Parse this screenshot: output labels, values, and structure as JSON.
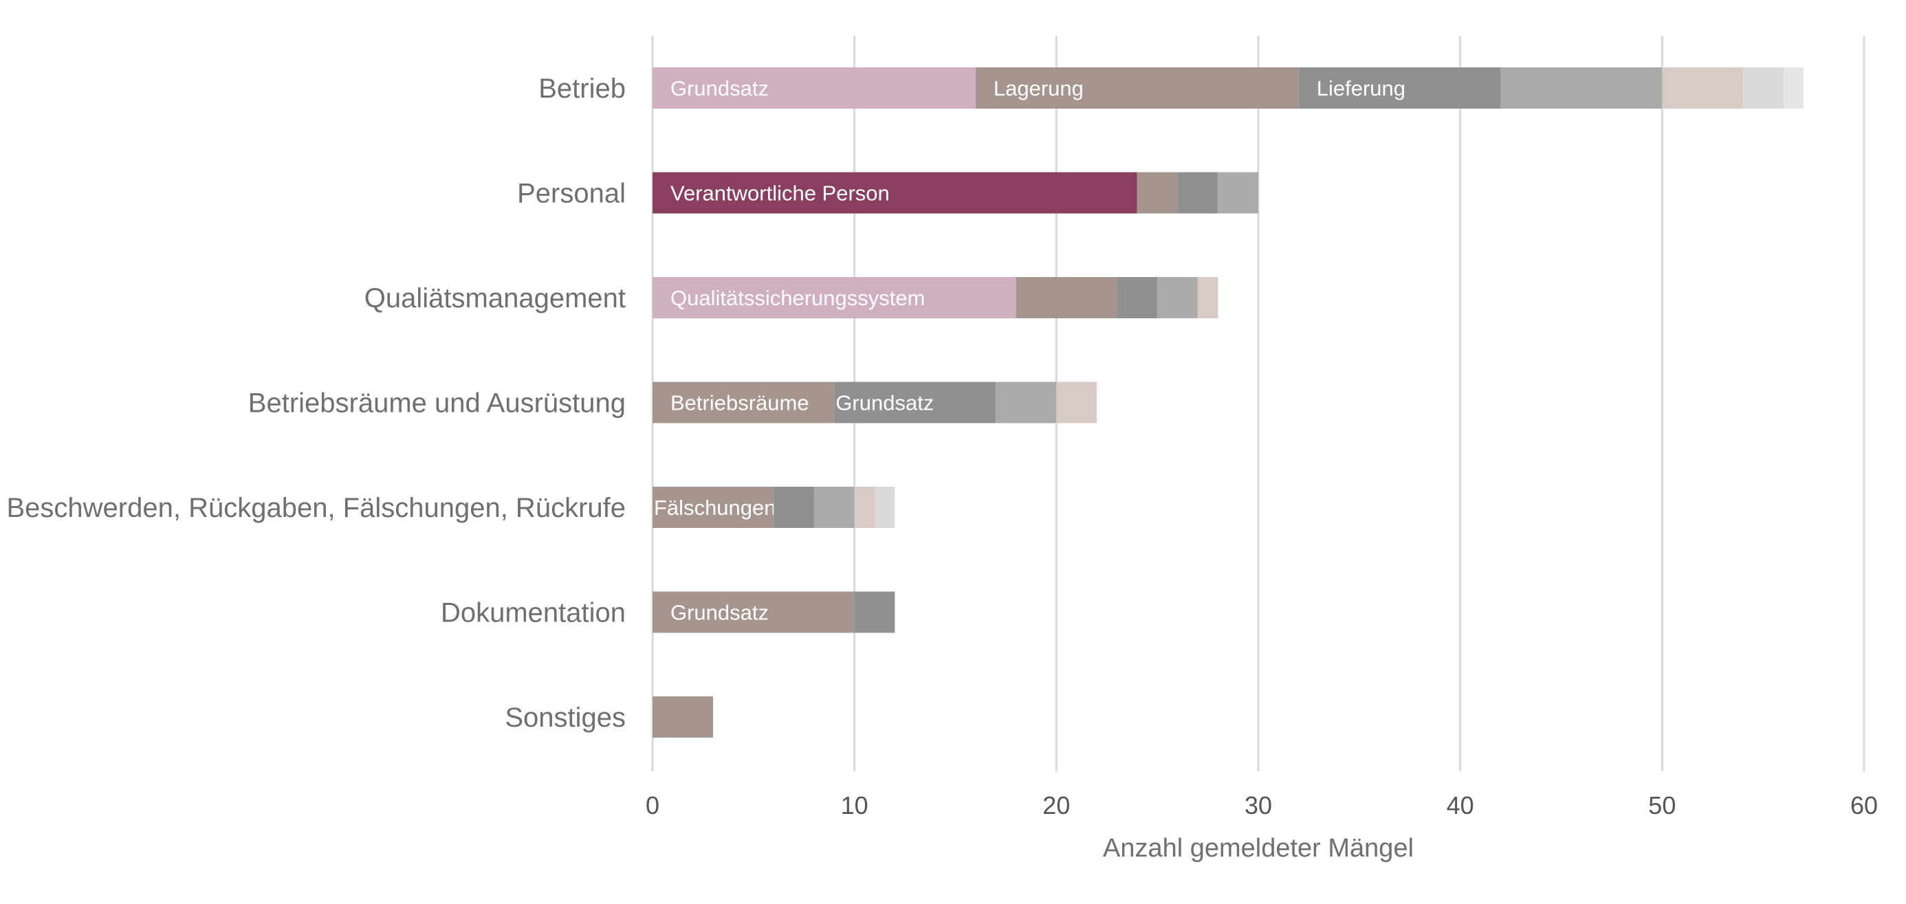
{
  "chart_data": {
    "type": "bar",
    "orientation": "horizontal",
    "stacked": true,
    "xlabel": "Anzahl gemeldeter Mängel",
    "xlim": [
      0,
      60
    ],
    "xticks": [
      0,
      10,
      20,
      30,
      40,
      50,
      60
    ],
    "grid": "vertical",
    "categories": [
      "Betrieb",
      "Personal",
      "Qualiätsmanagement",
      "Betriebsräume und Ausrüstung",
      "Beschwerden, Rückgaben, Fälschungen, Rückrufe",
      "Dokumentation",
      "Sonstiges"
    ],
    "bars": [
      {
        "category": "Betrieb",
        "segments": [
          {
            "value": 16,
            "color": "#d0afc0",
            "label": "Grundsatz"
          },
          {
            "value": 16,
            "color": "#a6958f",
            "label": "Lagerung"
          },
          {
            "value": 10,
            "color": "#8f9190",
            "label": "Lieferung"
          },
          {
            "value": 8,
            "color": "#ababab",
            "label": ""
          },
          {
            "value": 4,
            "color": "#d8cbc6",
            "label": ""
          },
          {
            "value": 2,
            "color": "#dadada",
            "label": ""
          },
          {
            "value": 1,
            "color": "#e6e6e6",
            "label": ""
          }
        ]
      },
      {
        "category": "Personal",
        "segments": [
          {
            "value": 24,
            "color": "#8a3f60",
            "label": "Verantwortliche Person"
          },
          {
            "value": 2,
            "color": "#a6958f",
            "label": ""
          },
          {
            "value": 2,
            "color": "#8f9190",
            "label": ""
          },
          {
            "value": 2,
            "color": "#ababab",
            "label": ""
          }
        ]
      },
      {
        "category": "Qualiätsmanagement",
        "segments": [
          {
            "value": 18,
            "color": "#d0afc0",
            "label": "Qualitätssicherungssystem"
          },
          {
            "value": 5,
            "color": "#a6958f",
            "label": ""
          },
          {
            "value": 2,
            "color": "#8f9190",
            "label": ""
          },
          {
            "value": 2,
            "color": "#ababab",
            "label": ""
          },
          {
            "value": 1,
            "color": "#d8cbc6",
            "label": ""
          }
        ]
      },
      {
        "category": "Betriebsräume und Ausrüstung",
        "segments": [
          {
            "value": 9,
            "color": "#a6958f",
            "label": "Betriebsräume"
          },
          {
            "value": 8,
            "color": "#8f9190",
            "label": "Grundsatz"
          },
          {
            "value": 3,
            "color": "#ababab",
            "label": ""
          },
          {
            "value": 2,
            "color": "#d8cbc6",
            "label": ""
          }
        ]
      },
      {
        "category": "Beschwerden, Rückgaben, Fälschungen, Rückrufe",
        "segments": [
          {
            "value": 6,
            "color": "#a6958f",
            "label": "Fälschungen"
          },
          {
            "value": 2,
            "color": "#8f9190",
            "label": ""
          },
          {
            "value": 2,
            "color": "#ababab",
            "label": ""
          },
          {
            "value": 1,
            "color": "#d8cbc6",
            "label": ""
          },
          {
            "value": 1,
            "color": "#dadada",
            "label": ""
          }
        ]
      },
      {
        "category": "Dokumentation",
        "segments": [
          {
            "value": 10,
            "color": "#a6958f",
            "label": "Grundsatz"
          },
          {
            "value": 2,
            "color": "#8f9190",
            "label": ""
          }
        ]
      },
      {
        "category": "Sonstiges",
        "segments": [
          {
            "value": 3,
            "color": "#a6958f",
            "label": ""
          }
        ]
      }
    ]
  }
}
